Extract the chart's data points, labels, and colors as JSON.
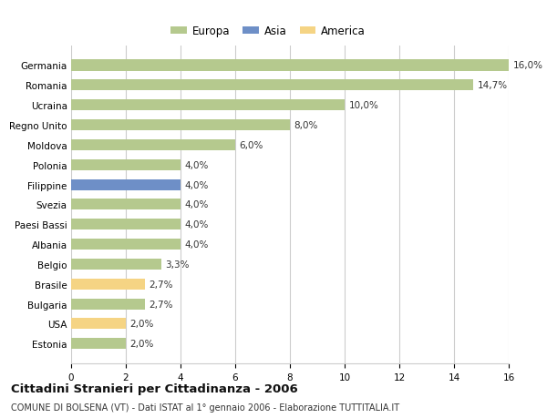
{
  "countries": [
    "Germania",
    "Romania",
    "Ucraina",
    "Regno Unito",
    "Moldova",
    "Polonia",
    "Filippine",
    "Svezia",
    "Paesi Bassi",
    "Albania",
    "Belgio",
    "Brasile",
    "Bulgaria",
    "USA",
    "Estonia"
  ],
  "values": [
    16.0,
    14.7,
    10.0,
    8.0,
    6.0,
    4.0,
    4.0,
    4.0,
    4.0,
    4.0,
    3.3,
    2.7,
    2.7,
    2.0,
    2.0
  ],
  "labels": [
    "16,0%",
    "14,7%",
    "10,0%",
    "8,0%",
    "6,0%",
    "4,0%",
    "4,0%",
    "4,0%",
    "4,0%",
    "4,0%",
    "3,3%",
    "2,7%",
    "2,7%",
    "2,0%",
    "2,0%"
  ],
  "colors": [
    "#b5c98e",
    "#b5c98e",
    "#b5c98e",
    "#b5c98e",
    "#b5c98e",
    "#b5c98e",
    "#6e8fc7",
    "#b5c98e",
    "#b5c98e",
    "#b5c98e",
    "#b5c98e",
    "#f5d484",
    "#b5c98e",
    "#f5d484",
    "#b5c98e"
  ],
  "legend_labels": [
    "Europa",
    "Asia",
    "America"
  ],
  "legend_colors": [
    "#b5c98e",
    "#6e8fc7",
    "#f5d484"
  ],
  "xlim": [
    0,
    16
  ],
  "xticks": [
    0,
    2,
    4,
    6,
    8,
    10,
    12,
    14,
    16
  ],
  "title_main": "Cittadini Stranieri per Cittadinanza - 2006",
  "title_sub": "COMUNE DI BOLSENA (VT) - Dati ISTAT al 1° gennaio 2006 - Elaborazione TUTTITALIA.IT",
  "bg_color": "#ffffff",
  "bar_height": 0.55,
  "grid_color": "#cccccc",
  "label_fontsize": 7.5,
  "tick_fontsize": 7.5,
  "title_fontsize": 9.5,
  "subtitle_fontsize": 7.0,
  "legend_fontsize": 8.5
}
